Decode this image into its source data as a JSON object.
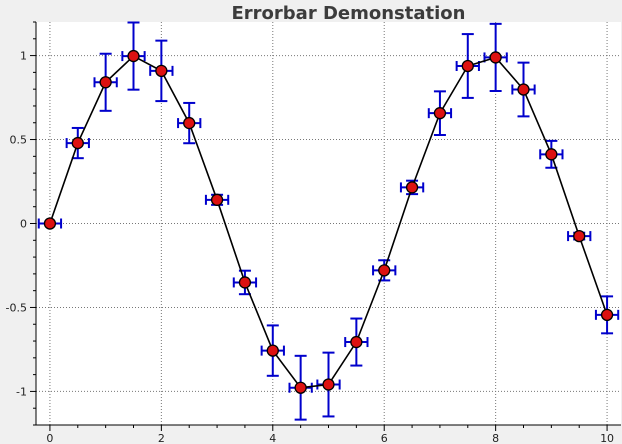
{
  "chart_data": {
    "type": "scatter",
    "title": "Errorbar Demonstation",
    "xlabel": "",
    "ylabel": "",
    "xlim": [
      -0.25,
      10.25
    ],
    "ylim": [
      -1.2,
      1.2
    ],
    "x_ticks": [
      0,
      2,
      4,
      6,
      8,
      10
    ],
    "x_tick_labels": [
      "0",
      "2",
      "4",
      "6",
      "8",
      "10"
    ],
    "y_ticks": [
      1,
      0.5,
      0,
      -0.5,
      -1
    ],
    "y_tick_labels": [
      "1",
      "0.5",
      "0",
      "-0.5",
      "-1"
    ],
    "grid": true,
    "grid_style": "dotted",
    "legend": "none",
    "series": [
      {
        "x": [
          0,
          0.5,
          1,
          1.5,
          2,
          2.5,
          3,
          3.5,
          4,
          4.5,
          5,
          5.5,
          6,
          6.5,
          7,
          7.5,
          8,
          8.5,
          9,
          9.5,
          10
        ],
        "y": [
          0,
          0.479,
          0.841,
          0.997,
          0.909,
          0.598,
          0.141,
          -0.351,
          -0.757,
          -0.978,
          -0.959,
          -0.706,
          -0.279,
          0.215,
          0.657,
          0.938,
          0.989,
          0.798,
          0.412,
          -0.075,
          -0.544
        ],
        "xerr": [
          0.2,
          0.2,
          0.2,
          0.2,
          0.2,
          0.2,
          0.2,
          0.2,
          0.2,
          0.2,
          0.2,
          0.2,
          0.2,
          0.2,
          0.2,
          0.2,
          0.2,
          0.2,
          0.2,
          0.2,
          0.2
        ],
        "yerr": [
          0,
          0.09,
          0.17,
          0.2,
          0.18,
          0.12,
          0.03,
          0.07,
          0.15,
          0.19,
          0.19,
          0.14,
          0.06,
          0.04,
          0.13,
          0.19,
          0.2,
          0.16,
          0.08,
          0.02,
          0.11
        ]
      }
    ],
    "colors": {
      "line": "#000000",
      "marker_fill": "#dd1111",
      "marker_edge": "#000000",
      "errorbar": "#0000cc",
      "grid": "#777777",
      "plot_bg": "#ffffff",
      "frame_bg": "#f0f0f0"
    }
  }
}
